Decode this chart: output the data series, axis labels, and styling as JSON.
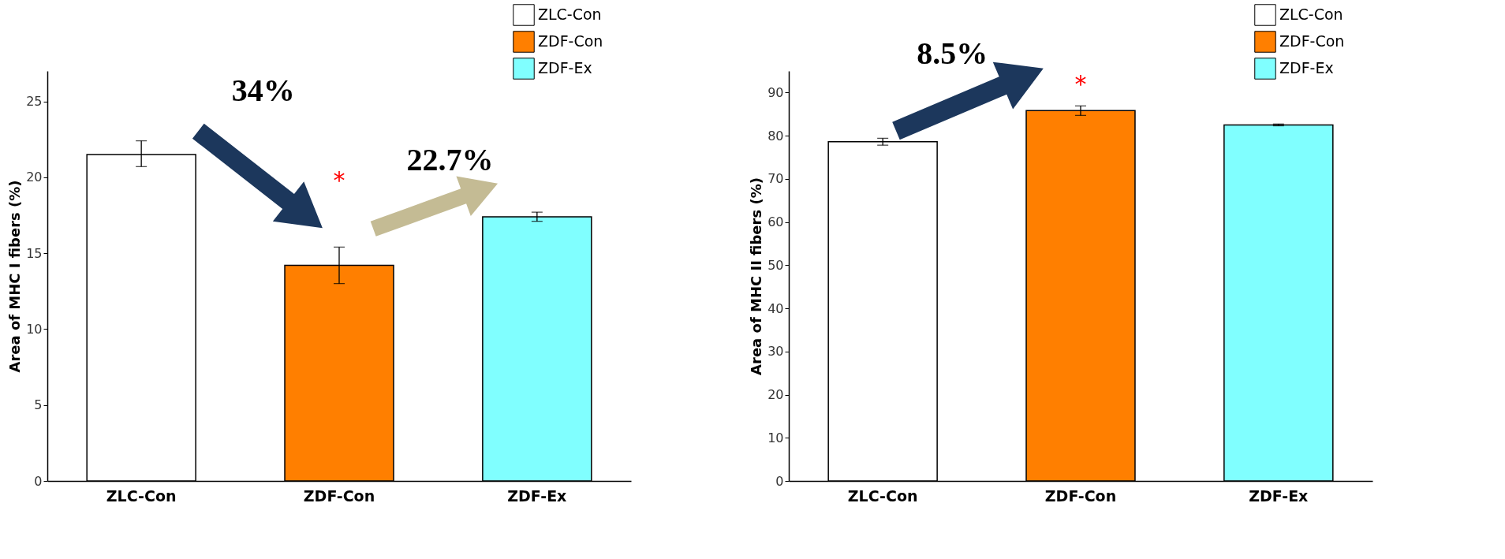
{
  "chart_data": [
    {
      "type": "bar",
      "ylabel": "Area of MHC I fibers (%)",
      "categories": [
        "ZLC-Con",
        "ZDF-Con",
        "ZDF-Ex"
      ],
      "series": [
        {
          "name": "ZLC-Con",
          "color": "#ffffff",
          "values": [
            21.5,
            null,
            null
          ],
          "errors": [
            [
              20.7,
              22.4
            ],
            null,
            null
          ]
        },
        {
          "name": "ZDF-Con",
          "color": "#ff7f00",
          "values": [
            null,
            14.2,
            null
          ],
          "errors": [
            null,
            [
              13.0,
              15.4
            ],
            null
          ]
        },
        {
          "name": "ZDF-Ex",
          "color": "#80ffff",
          "values": [
            null,
            null,
            17.4
          ],
          "errors": [
            null,
            null,
            [
              17.1,
              17.7
            ]
          ]
        }
      ],
      "ylim": [
        0,
        27
      ],
      "yticks": [
        0,
        5,
        10,
        15,
        20,
        25
      ],
      "grid": false,
      "legend": "top right",
      "annotations": [
        "34%",
        "22.7%",
        "*"
      ]
    },
    {
      "type": "bar",
      "ylabel": "Area of MHC II fibers (%)",
      "categories": [
        "ZLC-Con",
        "ZDF-Con",
        "ZDF-Ex"
      ],
      "series": [
        {
          "name": "ZLC-Con",
          "color": "#ffffff",
          "values": [
            78.6,
            null,
            null
          ],
          "errors": [
            [
              77.8,
              79.4
            ],
            null,
            null
          ]
        },
        {
          "name": "ZDF-Con",
          "color": "#ff7f00",
          "values": [
            null,
            85.8,
            null
          ],
          "errors": [
            null,
            [
              84.7,
              86.9
            ],
            null
          ]
        },
        {
          "name": "ZDF-Ex",
          "color": "#80ffff",
          "values": [
            null,
            null,
            82.5
          ],
          "errors": [
            null,
            null,
            [
              82.3,
              82.7
            ]
          ]
        }
      ],
      "ylim": [
        0,
        95
      ],
      "yticks": [
        0,
        10,
        20,
        30,
        40,
        50,
        60,
        70,
        80,
        90
      ],
      "grid": false,
      "legend": "top right",
      "annotations": [
        "8.5%",
        "*"
      ]
    }
  ]
}
